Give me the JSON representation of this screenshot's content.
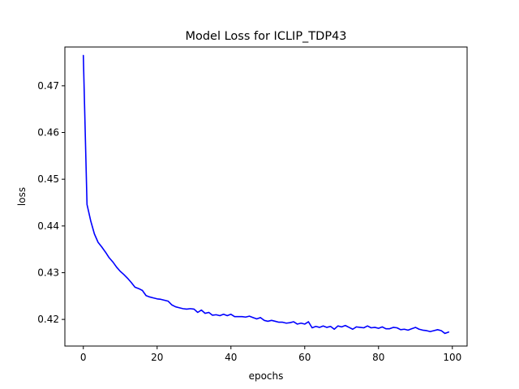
{
  "chart_data": {
    "type": "line",
    "title": "Model Loss for ICLIP_TDP43",
    "xlabel": "epochs",
    "ylabel": "loss",
    "xlim": [
      -5,
      104
    ],
    "ylim": [
      0.4143,
      0.4783
    ],
    "xticks": [
      0,
      20,
      40,
      60,
      80,
      100
    ],
    "yticks": [
      0.42,
      0.43,
      0.44,
      0.45,
      0.46,
      0.47
    ],
    "ytick_labels": [
      "0.42",
      "0.43",
      "0.44",
      "0.45",
      "0.46",
      "0.47"
    ],
    "grid": false,
    "series": [
      {
        "color": "#0000ff",
        "x": [
          0,
          1,
          2,
          3,
          4,
          5,
          6,
          7,
          8,
          9,
          10,
          11,
          12,
          13,
          14,
          15,
          16,
          17,
          18,
          19,
          20,
          21,
          22,
          23,
          24,
          25,
          26,
          27,
          28,
          29,
          30,
          31,
          32,
          33,
          34,
          35,
          36,
          37,
          38,
          39,
          40,
          41,
          42,
          43,
          44,
          45,
          46,
          47,
          48,
          49,
          50,
          51,
          52,
          53,
          54,
          55,
          56,
          57,
          58,
          59,
          60,
          61,
          62,
          63,
          64,
          65,
          66,
          67,
          68,
          69,
          70,
          71,
          72,
          73,
          74,
          75,
          76,
          77,
          78,
          79,
          80,
          81,
          82,
          83,
          84,
          85,
          86,
          87,
          88,
          89,
          90,
          91,
          92,
          93,
          94,
          95,
          96,
          97,
          98,
          99
        ],
        "y": [
          0.4765,
          0.4446,
          0.4411,
          0.4383,
          0.4365,
          0.4355,
          0.4344,
          0.4332,
          0.4323,
          0.4312,
          0.4303,
          0.4296,
          0.4288,
          0.4279,
          0.4269,
          0.4266,
          0.4262,
          0.4251,
          0.4248,
          0.4246,
          0.4244,
          0.4243,
          0.4241,
          0.4239,
          0.4231,
          0.4227,
          0.4225,
          0.4223,
          0.4222,
          0.4223,
          0.4222,
          0.4215,
          0.422,
          0.4213,
          0.4215,
          0.4209,
          0.421,
          0.4208,
          0.4211,
          0.4208,
          0.4211,
          0.4206,
          0.4206,
          0.4206,
          0.4205,
          0.4207,
          0.4204,
          0.4201,
          0.4204,
          0.4198,
          0.4196,
          0.4198,
          0.4196,
          0.4194,
          0.4194,
          0.4192,
          0.4193,
          0.4195,
          0.419,
          0.4192,
          0.419,
          0.4195,
          0.4182,
          0.4185,
          0.4183,
          0.4186,
          0.4183,
          0.4185,
          0.4179,
          0.4186,
          0.4184,
          0.4187,
          0.4183,
          0.4179,
          0.4184,
          0.4183,
          0.4182,
          0.4186,
          0.4182,
          0.4183,
          0.4181,
          0.4184,
          0.418,
          0.418,
          0.4183,
          0.4182,
          0.4178,
          0.4179,
          0.4177,
          0.418,
          0.4183,
          0.4179,
          0.4177,
          0.4176,
          0.4174,
          0.4176,
          0.4178,
          0.4176,
          0.417,
          0.4173
        ]
      }
    ]
  }
}
